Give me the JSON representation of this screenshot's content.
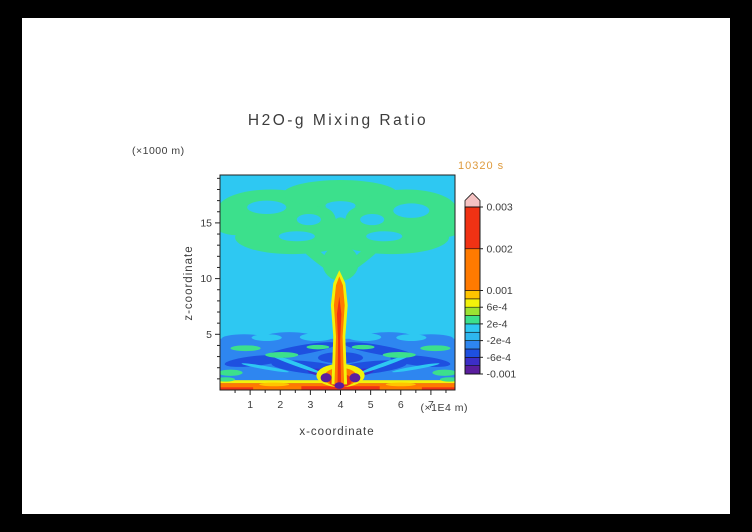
{
  "frame": {
    "outer_bg": "#000000",
    "page_bg": "#ffffff",
    "axis_color": "#222222",
    "text_color": "#3c3c3c",
    "time_color": "#DE9A3C"
  },
  "chart_data": {
    "type": "heatmap",
    "title": "H2O-g Mixing Ratio",
    "time_label": "10320 s",
    "x_axis": {
      "label": "x-coordinate",
      "unit_label": "(×1E4 m)",
      "range": [
        0,
        7.8
      ],
      "major_ticks": [
        1,
        2,
        3,
        4,
        5,
        6,
        7
      ],
      "minor_ticks": [
        0.5,
        1.5,
        2.5,
        3.5,
        4.5,
        5.5,
        6.5,
        7.5
      ]
    },
    "z_axis": {
      "label": "z-coordinate",
      "unit_label": "(×1000 m)",
      "range": [
        0,
        19.3
      ],
      "major_ticks": [
        5,
        10,
        15
      ],
      "minor_ticks": [
        1,
        2,
        3,
        4,
        6,
        7,
        8,
        9,
        11,
        12,
        13,
        14,
        16,
        17,
        18,
        19
      ]
    },
    "colorbar": {
      "levels": [
        -0.001,
        -0.0008,
        -0.0006,
        -0.0004,
        -0.0002,
        0,
        0.0002,
        0.0004,
        0.0006,
        0.0008,
        0.001,
        0.002,
        0.003
      ],
      "band_colors": [
        "#5A1E9E",
        "#3C2EC8",
        "#1E50E0",
        "#2E86F0",
        "#2EB6EE",
        "#2EC8F2",
        "#3CE08C",
        "#9BE332",
        "#F2F20A",
        "#FFC400",
        "#FF7A00",
        "#F03214"
      ],
      "overflow_color": "#F5C2C2",
      "labeled_levels": [
        0.003,
        0.002,
        0.001,
        0.0006,
        0.0002,
        -0.0002,
        -0.0006,
        -0.001
      ],
      "labels": [
        "0.003",
        "0.002",
        "0.001",
        "6e-4",
        "2e-4",
        "-2e-4",
        "-6e-4",
        "-0.001"
      ]
    },
    "scene_note": "primitives in data coords; c = index into colorbar.band_colors; t: r=rect(x,z=bottom-left,w,h), e=ellipse(center,rx,rz,rot), p=polygon",
    "scene": [
      {
        "t": "r",
        "x": 0,
        "z": 0,
        "w": 7.8,
        "h": 19.3,
        "c": 5
      },
      {
        "t": "e",
        "x": 1.7,
        "z": 16.3,
        "rx": 1.75,
        "rz": 1.7,
        "c": 6
      },
      {
        "t": "e",
        "x": 4.0,
        "z": 17.6,
        "rx": 1.9,
        "rz": 1.25,
        "c": 6
      },
      {
        "t": "e",
        "x": 6.2,
        "z": 16.2,
        "rx": 1.65,
        "rz": 1.8,
        "c": 6
      },
      {
        "t": "e",
        "x": 0.55,
        "z": 15.0,
        "rx": 0.8,
        "rz": 1.1,
        "c": 6
      },
      {
        "t": "e",
        "x": 7.35,
        "z": 14.8,
        "rx": 0.8,
        "rz": 1.1,
        "c": 6
      },
      {
        "t": "e",
        "x": 2.4,
        "z": 13.7,
        "rx": 1.9,
        "rz": 1.5,
        "c": 6
      },
      {
        "t": "e",
        "x": 5.7,
        "z": 13.7,
        "rx": 1.9,
        "rz": 1.5,
        "c": 6
      },
      {
        "t": "e",
        "x": 3.3,
        "z": 15.1,
        "rx": 0.55,
        "rz": 1.35,
        "rot": -12,
        "c": 6
      },
      {
        "t": "e",
        "x": 4.7,
        "z": 15.1,
        "rx": 0.55,
        "rz": 1.35,
        "rot": 12,
        "c": 6
      },
      {
        "t": "e",
        "x": 3.1,
        "z": 12.3,
        "rx": 1.25,
        "rz": 0.5,
        "rot": 40,
        "c": 6
      },
      {
        "t": "e",
        "x": 4.9,
        "z": 12.3,
        "rx": 1.25,
        "rz": 0.5,
        "rot": -40,
        "c": 6
      },
      {
        "t": "e",
        "x": 4.0,
        "z": 11.4,
        "rx": 0.6,
        "rz": 1.6,
        "c": 6
      },
      {
        "t": "e",
        "x": 4.0,
        "z": 14.2,
        "rx": 0.32,
        "rz": 1.3,
        "c": 6
      },
      {
        "t": "e",
        "x": 1.55,
        "z": 16.4,
        "rx": 0.65,
        "rz": 0.6,
        "c": 5
      },
      {
        "t": "e",
        "x": 6.35,
        "z": 16.1,
        "rx": 0.6,
        "rz": 0.65,
        "c": 5
      },
      {
        "t": "e",
        "x": 2.55,
        "z": 13.8,
        "rx": 0.6,
        "rz": 0.45,
        "c": 5
      },
      {
        "t": "e",
        "x": 5.45,
        "z": 13.8,
        "rx": 0.6,
        "rz": 0.45,
        "c": 5
      },
      {
        "t": "e",
        "x": 4.0,
        "z": 16.55,
        "rx": 0.5,
        "rz": 0.4,
        "c": 5
      },
      {
        "t": "e",
        "x": 2.95,
        "z": 15.3,
        "rx": 0.4,
        "rz": 0.5,
        "c": 5
      },
      {
        "t": "e",
        "x": 5.05,
        "z": 15.3,
        "rx": 0.4,
        "rz": 0.5,
        "c": 5
      },
      {
        "t": "r",
        "x": 0,
        "z": 0.85,
        "w": 7.8,
        "h": 3.75,
        "c": 3
      },
      {
        "t": "e",
        "x": 0.8,
        "z": 4.6,
        "rx": 0.75,
        "rz": 0.4,
        "c": 3
      },
      {
        "t": "e",
        "x": 2.3,
        "z": 4.75,
        "rx": 0.8,
        "rz": 0.45,
        "c": 3
      },
      {
        "t": "e",
        "x": 5.6,
        "z": 4.75,
        "rx": 0.8,
        "rz": 0.45,
        "c": 3
      },
      {
        "t": "e",
        "x": 7.0,
        "z": 4.6,
        "rx": 0.75,
        "rz": 0.4,
        "c": 3
      },
      {
        "t": "e",
        "x": 1.55,
        "z": 4.7,
        "rx": 0.5,
        "rz": 0.3,
        "c": 5
      },
      {
        "t": "e",
        "x": 3.2,
        "z": 4.75,
        "rx": 0.55,
        "rz": 0.35,
        "c": 5
      },
      {
        "t": "e",
        "x": 4.8,
        "z": 4.75,
        "rx": 0.55,
        "rz": 0.35,
        "c": 5
      },
      {
        "t": "e",
        "x": 6.35,
        "z": 4.7,
        "rx": 0.5,
        "rz": 0.3,
        "c": 5
      },
      {
        "t": "e",
        "x": 2.7,
        "z": 3.6,
        "rx": 1.2,
        "rz": 0.42,
        "rot": -10,
        "c": 2
      },
      {
        "t": "e",
        "x": 5.3,
        "z": 3.6,
        "rx": 1.2,
        "rz": 0.42,
        "rot": 10,
        "c": 2
      },
      {
        "t": "e",
        "x": 1.15,
        "z": 2.6,
        "rx": 1.0,
        "rz": 0.45,
        "rot": -6,
        "c": 2
      },
      {
        "t": "e",
        "x": 6.65,
        "z": 2.6,
        "rx": 1.0,
        "rz": 0.45,
        "rot": 6,
        "c": 2
      },
      {
        "t": "e",
        "x": 3.0,
        "z": 2.0,
        "rx": 1.3,
        "rz": 0.55,
        "rot": 6,
        "c": 2
      },
      {
        "t": "e",
        "x": 4.9,
        "z": 2.0,
        "rx": 1.3,
        "rz": 0.55,
        "rot": -6,
        "c": 2
      },
      {
        "t": "e",
        "x": 4.0,
        "z": 2.9,
        "rx": 0.75,
        "rz": 0.5,
        "c": 2
      },
      {
        "t": "e",
        "x": 3.4,
        "z": 1.55,
        "rx": 0.5,
        "rz": 0.32,
        "rot": 8,
        "c": 1
      },
      {
        "t": "e",
        "x": 4.6,
        "z": 1.55,
        "rx": 0.5,
        "rz": 0.32,
        "rot": -8,
        "c": 1
      },
      {
        "t": "e",
        "x": 2.5,
        "z": 2.35,
        "rx": 0.95,
        "rz": 0.17,
        "rot": 20,
        "c": 5
      },
      {
        "t": "e",
        "x": 5.5,
        "z": 2.35,
        "rx": 0.95,
        "rz": 0.17,
        "rot": -20,
        "c": 5
      },
      {
        "t": "e",
        "x": 1.5,
        "z": 2.0,
        "rx": 0.8,
        "rz": 0.15,
        "rot": 10,
        "c": 5
      },
      {
        "t": "e",
        "x": 6.5,
        "z": 2.0,
        "rx": 0.8,
        "rz": 0.15,
        "rot": -10,
        "c": 5
      },
      {
        "t": "e",
        "x": 0.85,
        "z": 3.75,
        "rx": 0.5,
        "rz": 0.26,
        "c": 6
      },
      {
        "t": "e",
        "x": 2.05,
        "z": 3.15,
        "rx": 0.55,
        "rz": 0.26,
        "c": 6
      },
      {
        "t": "e",
        "x": 3.25,
        "z": 3.85,
        "rx": 0.38,
        "rz": 0.2,
        "c": 6
      },
      {
        "t": "e",
        "x": 4.75,
        "z": 3.85,
        "rx": 0.38,
        "rz": 0.2,
        "c": 6
      },
      {
        "t": "e",
        "x": 5.95,
        "z": 3.15,
        "rx": 0.55,
        "rz": 0.26,
        "c": 6
      },
      {
        "t": "e",
        "x": 7.15,
        "z": 3.75,
        "rx": 0.5,
        "rz": 0.26,
        "c": 6
      },
      {
        "t": "e",
        "x": 0.35,
        "z": 1.55,
        "rx": 0.4,
        "rz": 0.28,
        "c": 6
      },
      {
        "t": "e",
        "x": 7.45,
        "z": 1.55,
        "rx": 0.4,
        "rz": 0.28,
        "c": 6
      },
      {
        "t": "r",
        "x": 0,
        "z": 0.62,
        "w": 7.8,
        "h": 0.26,
        "c": 8
      },
      {
        "t": "r",
        "x": 0,
        "z": 0.0,
        "w": 7.8,
        "h": 0.62,
        "c": 10
      },
      {
        "t": "r",
        "x": 2.7,
        "z": 0.0,
        "w": 2.6,
        "h": 0.34,
        "c": 11
      },
      {
        "t": "r",
        "x": 0,
        "z": 0.0,
        "w": 1.1,
        "h": 0.24,
        "c": 11
      },
      {
        "t": "r",
        "x": 6.7,
        "z": 0.0,
        "w": 1.1,
        "h": 0.24,
        "c": 11
      },
      {
        "t": "e",
        "x": 1.8,
        "z": 0.5,
        "rx": 0.5,
        "rz": 0.16,
        "c": 9
      },
      {
        "t": "e",
        "x": 6.0,
        "z": 0.5,
        "rx": 0.5,
        "rz": 0.16,
        "c": 9
      },
      {
        "t": "e",
        "x": 0.18,
        "z": 0.95,
        "rx": 0.32,
        "rz": 0.2,
        "c": 6
      },
      {
        "t": "e",
        "x": 7.62,
        "z": 0.95,
        "rx": 0.32,
        "rz": 0.2,
        "c": 6
      },
      {
        "t": "e",
        "x": 4.0,
        "z": 1.3,
        "rx": 0.8,
        "rz": 1.05,
        "c": 8
      },
      {
        "t": "e",
        "x": 4.0,
        "z": 1.15,
        "rx": 0.55,
        "rz": 0.85,
        "c": 10
      },
      {
        "t": "e",
        "x": 4.0,
        "z": 0.85,
        "rx": 0.38,
        "rz": 0.6,
        "c": 11
      },
      {
        "t": "p",
        "c": 8,
        "pts": [
          [
            3.7,
            0.5
          ],
          [
            3.76,
            4.8
          ],
          [
            3.68,
            7.6
          ],
          [
            3.76,
            9.6
          ],
          [
            3.96,
            10.75
          ],
          [
            4.16,
            9.6
          ],
          [
            4.24,
            7.6
          ],
          [
            4.16,
            4.8
          ],
          [
            4.22,
            0.5
          ]
        ]
      },
      {
        "t": "p",
        "c": 10,
        "pts": [
          [
            3.8,
            0.5
          ],
          [
            3.85,
            4.8
          ],
          [
            3.78,
            7.6
          ],
          [
            3.85,
            9.4
          ],
          [
            3.96,
            10.2
          ],
          [
            4.08,
            9.4
          ],
          [
            4.14,
            7.6
          ],
          [
            4.07,
            4.8
          ],
          [
            4.12,
            0.5
          ]
        ]
      },
      {
        "t": "p",
        "c": 11,
        "pts": [
          [
            3.9,
            0.5
          ],
          [
            3.92,
            4.4
          ],
          [
            3.88,
            6.8
          ],
          [
            3.96,
            8.4
          ],
          [
            4.03,
            6.8
          ],
          [
            3.99,
            4.4
          ],
          [
            4.02,
            0.5
          ]
        ]
      },
      {
        "t": "e",
        "x": 3.96,
        "z": 0.4,
        "rx": 0.16,
        "rz": 0.3,
        "c": 0
      },
      {
        "t": "e",
        "x": 3.52,
        "z": 1.1,
        "rx": 0.18,
        "rz": 0.42,
        "c": 0
      },
      {
        "t": "e",
        "x": 4.48,
        "z": 1.1,
        "rx": 0.18,
        "rz": 0.42,
        "c": 0
      }
    ]
  }
}
